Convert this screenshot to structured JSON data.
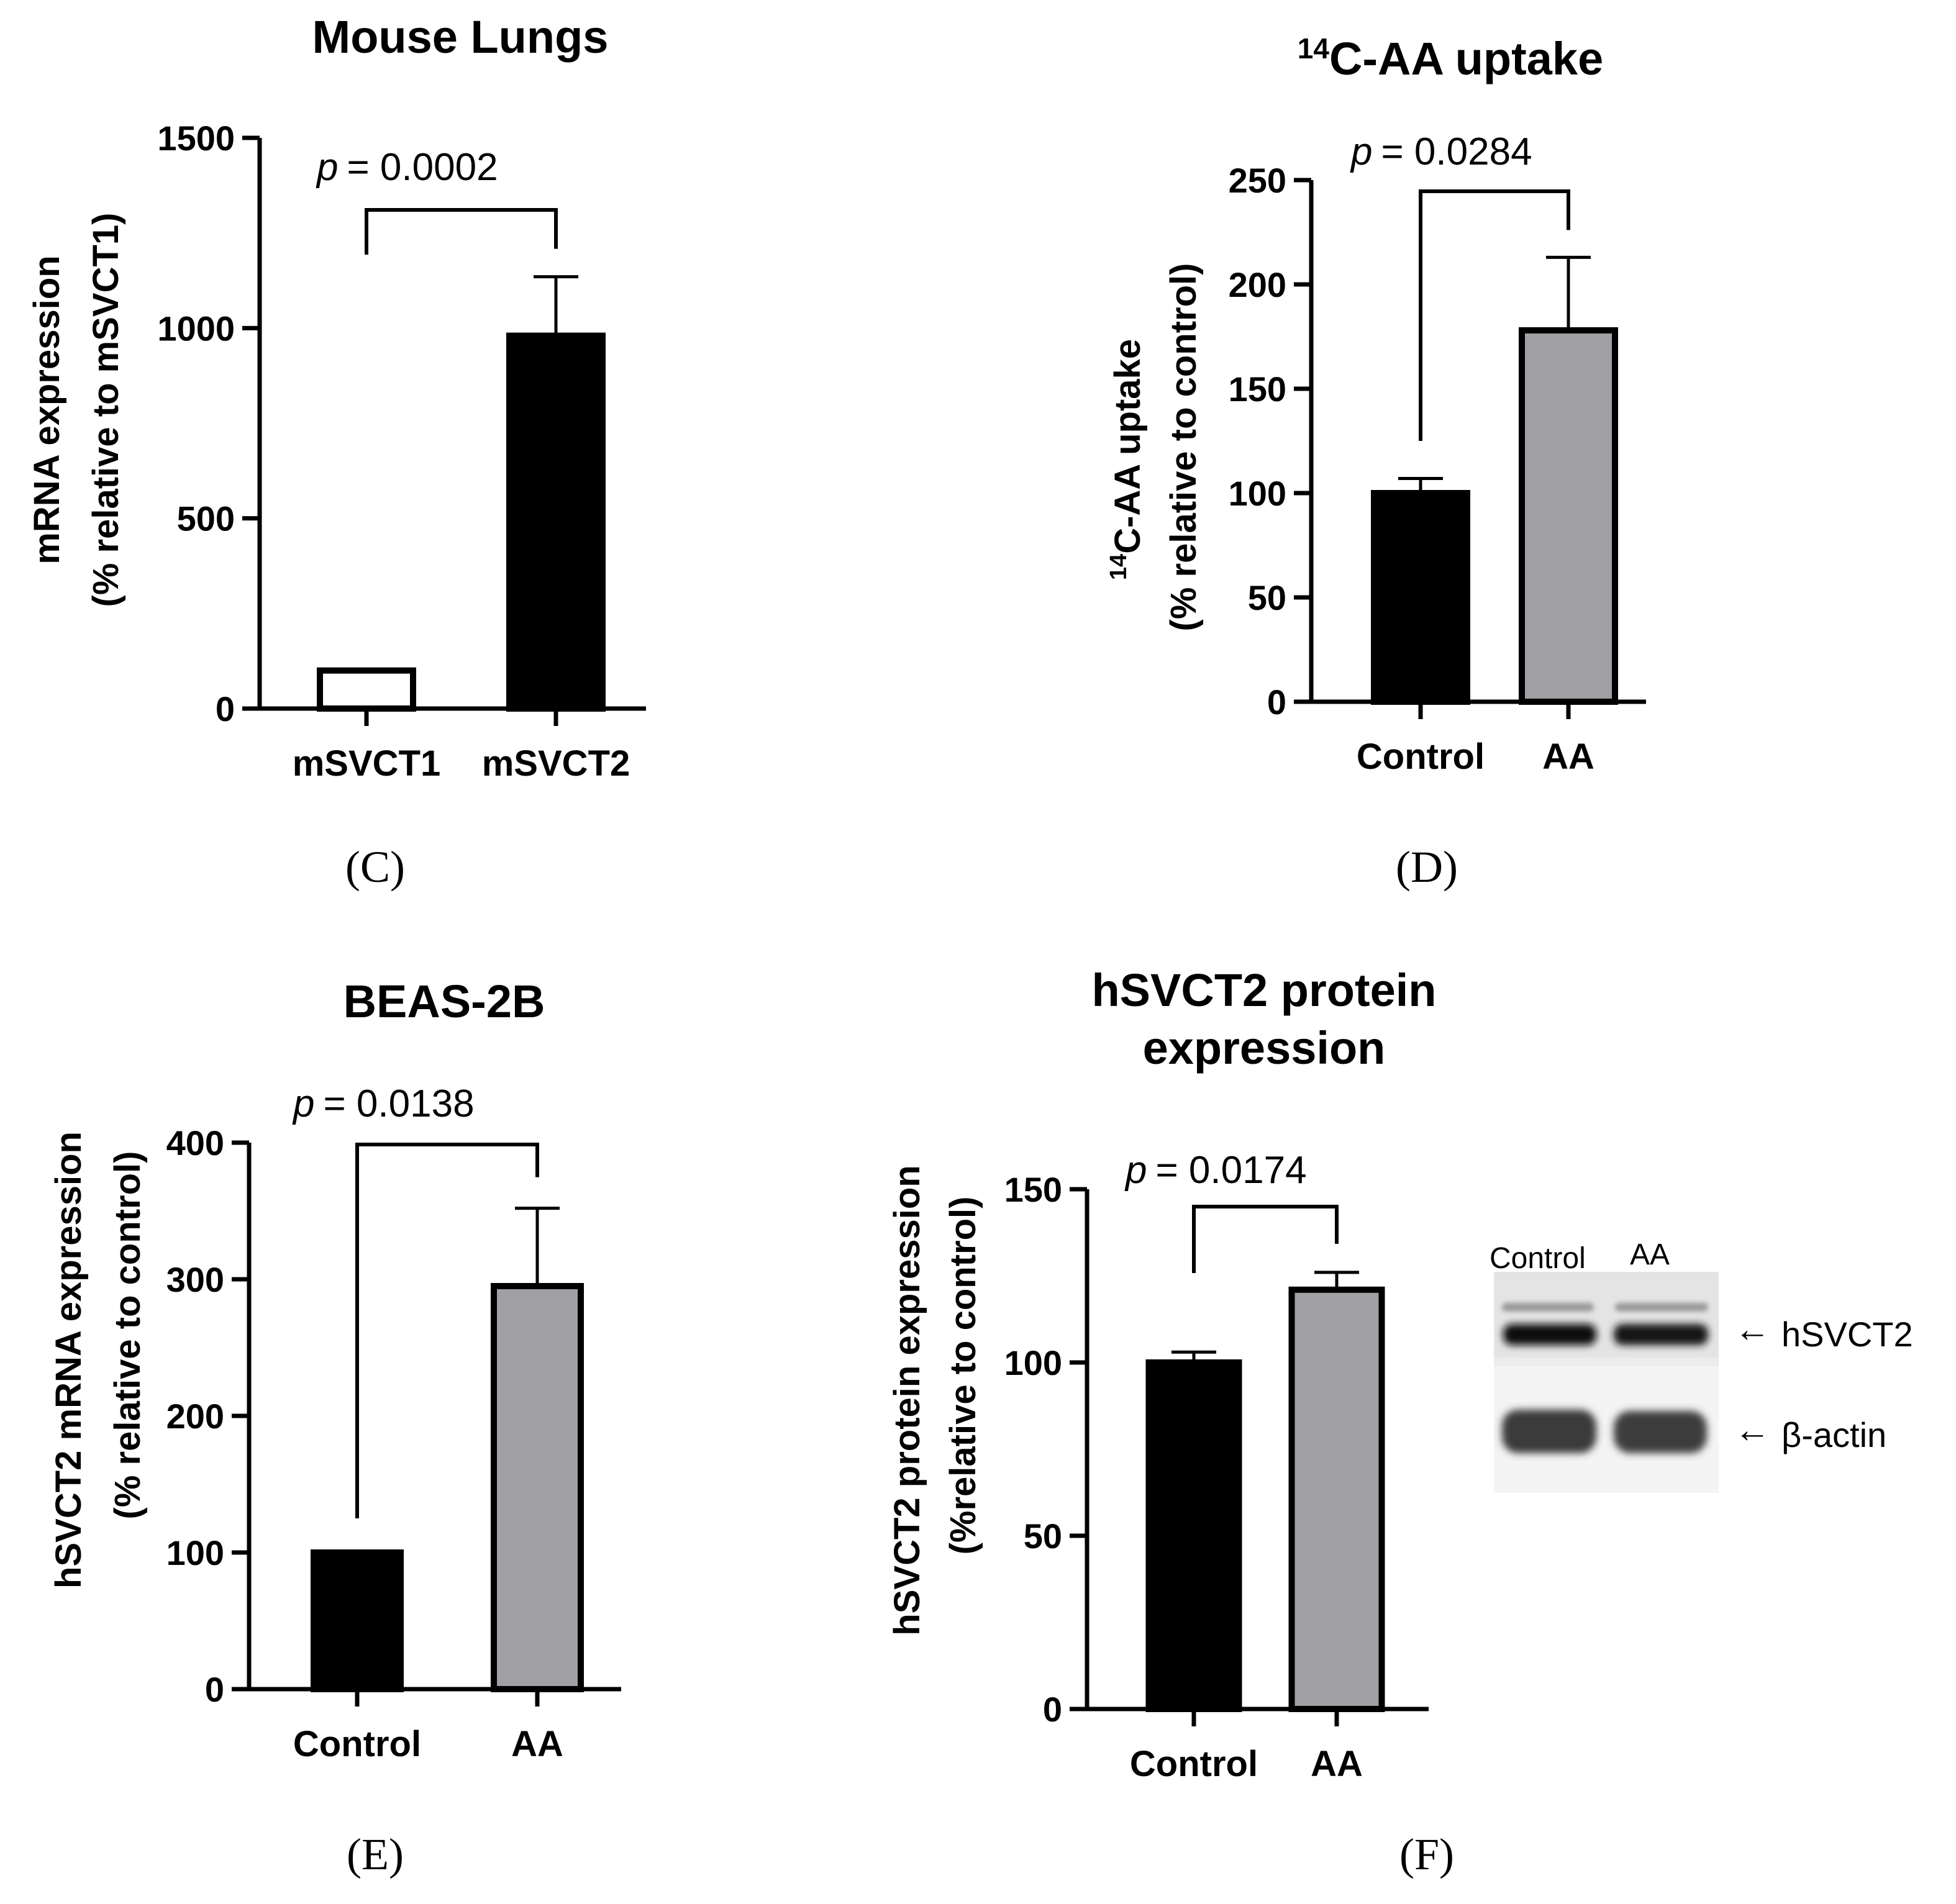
{
  "chart_data": [
    {
      "id": "C",
      "type": "bar",
      "title": "Mouse Lungs",
      "ylabel_lines": [
        "mRNA expression",
        "(% relative to mSVCT1)"
      ],
      "xlabel": "",
      "categories": [
        "mSVCT1",
        "mSVCT2"
      ],
      "values": [
        100,
        980
      ],
      "errors": [
        0,
        155
      ],
      "bar_colors": [
        "#ffffff",
        "#000000"
      ],
      "ylim": [
        0,
        1500
      ],
      "yticks": [
        0,
        500,
        1000,
        1500
      ],
      "p_label": "p",
      "p_value": "= 0.0002",
      "panel_label": "(C)"
    },
    {
      "id": "D",
      "type": "bar",
      "title_sup": "14",
      "title": "C-AA uptake",
      "ylabel_sup": "14",
      "ylabel_line1": "C-AA uptake",
      "ylabel_line2": "(% relative to control)",
      "xlabel": "",
      "categories": [
        "Control",
        "AA"
      ],
      "values": [
        100,
        178
      ],
      "errors": [
        7,
        35
      ],
      "bar_colors": [
        "#000000",
        "#a0a0a4"
      ],
      "ylim": [
        0,
        250
      ],
      "yticks": [
        0,
        50,
        100,
        150,
        200,
        250
      ],
      "p_label": "p",
      "p_value": "= 0.0284",
      "panel_label": "(D)"
    },
    {
      "id": "E",
      "type": "bar",
      "title": "BEAS-2B",
      "ylabel_lines": [
        "hSVCT2 mRNA expression",
        "(% relative to control)"
      ],
      "xlabel": "",
      "categories": [
        "Control",
        "AA"
      ],
      "values": [
        100,
        295
      ],
      "errors": [
        0,
        57
      ],
      "bar_colors": [
        "#000000",
        "#a0a0a4"
      ],
      "ylim": [
        0,
        400
      ],
      "yticks": [
        0,
        100,
        200,
        300,
        400
      ],
      "p_label": "p",
      "p_value": "= 0.0138",
      "panel_label": "(E)"
    },
    {
      "id": "F",
      "type": "bar",
      "title_lines": [
        "hSVCT2 protein",
        "expression"
      ],
      "ylabel_lines": [
        "hSVCT2 protein expression",
        "(%relative to control)"
      ],
      "xlabel": "",
      "categories": [
        "Control",
        "AA"
      ],
      "values": [
        100,
        121
      ],
      "errors": [
        3,
        5
      ],
      "bar_colors": [
        "#000000",
        "#a0a0a4"
      ],
      "ylim": [
        0,
        150
      ],
      "yticks": [
        0,
        50,
        100,
        150
      ],
      "p_label": "p",
      "p_value": "= 0.0174",
      "panel_label": "(F)"
    }
  ],
  "blot": {
    "lane_labels": [
      "Control",
      "AA"
    ],
    "band_labels": [
      "hSVCT2",
      "β-actin"
    ],
    "arrow": "←"
  }
}
